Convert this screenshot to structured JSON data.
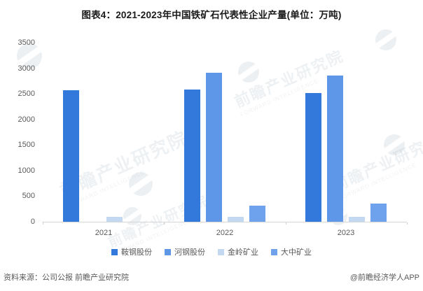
{
  "title": "图表4：2021-2023年中国铁矿石代表性企业产量(单位：万吨)",
  "chart_data": {
    "type": "bar",
    "categories": [
      "2021",
      "2022",
      "2023"
    ],
    "series": [
      {
        "name": "鞍钢股份",
        "color": "#3379db",
        "values": [
          2570,
          2590,
          2520
        ]
      },
      {
        "name": "河钢股份",
        "color": "#5e97e8",
        "values": [
          null,
          2910,
          2860
        ]
      },
      {
        "name": "金岭矿业",
        "color": "#c3d9f2",
        "values": [
          100,
          95,
          100
        ]
      },
      {
        "name": "大中矿业",
        "color": "#6fa2ec",
        "values": [
          null,
          320,
          350
        ]
      }
    ],
    "yticks": [
      0,
      500,
      1000,
      1500,
      2000,
      2500,
      3000,
      3500
    ],
    "ylim": [
      0,
      3500
    ],
    "xlabel": "",
    "ylabel": "",
    "grid": false,
    "legend_position": "bottom"
  },
  "footer": {
    "source": "资料来源：公司公报 前瞻产业研究院",
    "attribution": "@前瞻经济学人APP"
  },
  "watermark": {
    "text": "前瞻产业研究院",
    "subtext": "FORWARD INTELLIGENCE"
  }
}
